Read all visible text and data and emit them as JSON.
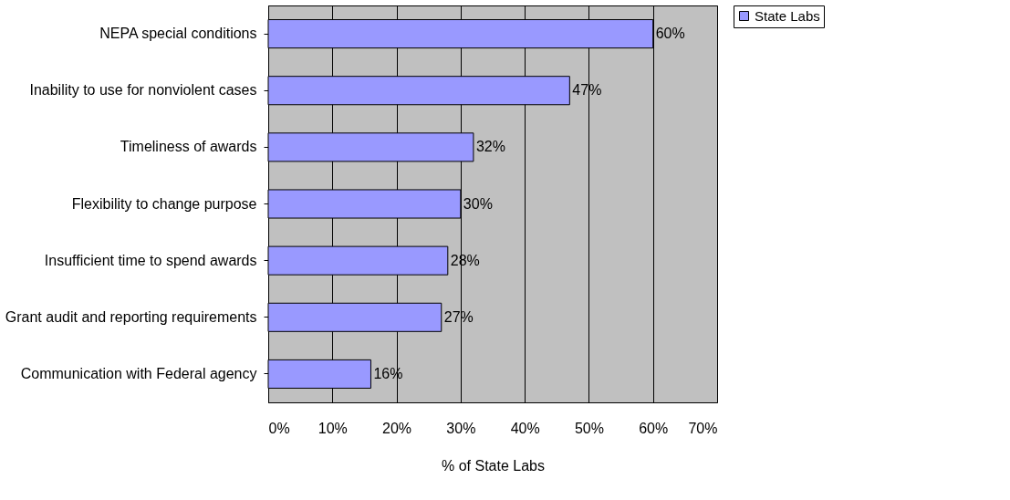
{
  "chart_data": {
    "type": "bar",
    "orientation": "horizontal",
    "xlabel": "% of State Labs",
    "categories": [
      "NEPA special conditions",
      "Inability to use for nonviolent cases",
      "Timeliness of awards",
      "Flexibility to change purpose",
      "Insufficient time to spend awards",
      "Grant audit and reporting requirements",
      "Communication with Federal agency"
    ],
    "series": [
      {
        "name": "State Labs",
        "color": "#9999ff",
        "values": [
          60,
          47,
          32,
          30,
          28,
          27,
          16
        ],
        "value_labels": [
          "60%",
          "47%",
          "32%",
          "30%",
          "28%",
          "27%",
          "16%"
        ]
      }
    ],
    "xlim": [
      0,
      70
    ],
    "xticks": [
      {
        "value": 0,
        "label": "0%"
      },
      {
        "value": 10,
        "label": "10%"
      },
      {
        "value": 20,
        "label": "20%"
      },
      {
        "value": 30,
        "label": "30%"
      },
      {
        "value": 40,
        "label": "40%"
      },
      {
        "value": 50,
        "label": "50%"
      },
      {
        "value": 60,
        "label": "60%"
      },
      {
        "value": 70,
        "label": "70%"
      }
    ],
    "grid": "x",
    "legend": "right"
  }
}
